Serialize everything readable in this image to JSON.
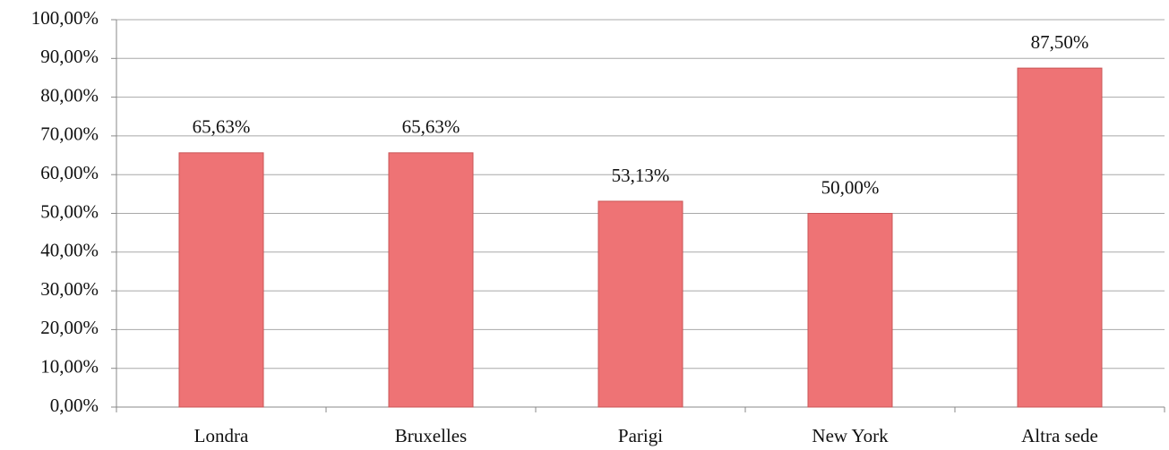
{
  "chart_data": {
    "type": "bar",
    "categories": [
      "Londra",
      "Bruxelles",
      "Parigi",
      "New York",
      "Altra sede"
    ],
    "values": [
      65.63,
      65.63,
      53.13,
      50.0,
      87.5
    ],
    "value_labels": [
      "65,63%",
      "65,63%",
      "53,13%",
      "50,00%",
      "87,50%"
    ],
    "color": "#ee7375",
    "ylim": [
      0,
      100
    ],
    "yticks": [
      {
        "value": 0,
        "label": "0,00%"
      },
      {
        "value": 10,
        "label": "10,00%"
      },
      {
        "value": 20,
        "label": "20,00%"
      },
      {
        "value": 30,
        "label": "30,00%"
      },
      {
        "value": 40,
        "label": "40,00%"
      },
      {
        "value": 50,
        "label": "50,00%"
      },
      {
        "value": 60,
        "label": "60,00%"
      },
      {
        "value": 70,
        "label": "70,00%"
      },
      {
        "value": 80,
        "label": "80,00%"
      },
      {
        "value": 90,
        "label": "90,00%"
      },
      {
        "value": 100,
        "label": "100,00%"
      }
    ],
    "grid": true
  }
}
